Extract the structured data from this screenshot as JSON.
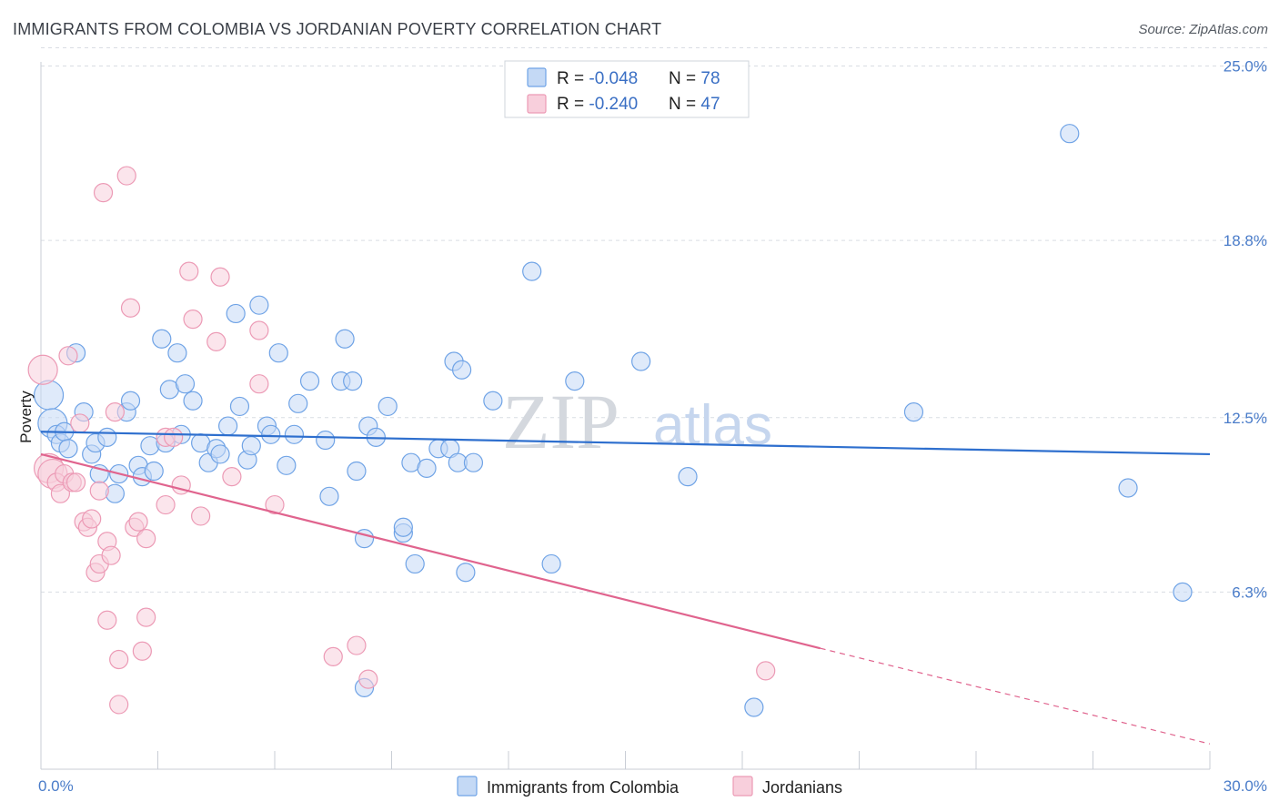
{
  "header": {
    "title": "IMMIGRANTS FROM COLOMBIA VS JORDANIAN POVERTY CORRELATION CHART",
    "source": "Source: ZipAtlas.com"
  },
  "colors": {
    "blue": "#6fa3e6",
    "blue_fill": "#c4d9f5",
    "blue_line": "#2e6fce",
    "pink": "#ec9ab5",
    "pink_fill": "#f8cfdc",
    "pink_line": "#e0648e",
    "grid": "#d9dde3",
    "axis_text": "#4a7cc9"
  },
  "legend_top": {
    "rows": [
      {
        "r_label": "R = ",
        "r_value": "-0.048",
        "n_label": "N = ",
        "n_value": "78"
      },
      {
        "r_label": "R = ",
        "r_value": "-0.240",
        "n_label": "N = ",
        "n_value": "47"
      }
    ]
  },
  "legend_bottom": {
    "items": [
      "Immigrants from Colombia",
      "Jordanians"
    ]
  },
  "watermark": {
    "zip": "ZIP",
    "atlas": "atlas"
  },
  "chart_data": {
    "type": "scatter",
    "title": "IMMIGRANTS FROM COLOMBIA VS JORDANIAN POVERTY CORRELATION CHART",
    "xlabel": "",
    "ylabel": "Poverty",
    "xlim": [
      0,
      30
    ],
    "ylim": [
      0,
      26.5
    ],
    "x_tick_labels": [
      "0.0%",
      "30.0%"
    ],
    "y_ticks": [
      6.3,
      12.5,
      18.8,
      25.0
    ],
    "y_tick_labels": [
      "6.3%",
      "12.5%",
      "18.8%",
      "25.0%"
    ],
    "grid": true,
    "legend_placement": "top-center",
    "series": [
      {
        "name": "Immigrants from Colombia",
        "r": -0.048,
        "n": 78,
        "trend": {
          "x": [
            0,
            30
          ],
          "y": [
            12.0,
            11.2
          ]
        },
        "points": [
          [
            0.2,
            13.3
          ],
          [
            0.3,
            12.3
          ],
          [
            0.4,
            11.9
          ],
          [
            0.5,
            11.6
          ],
          [
            0.6,
            12.0
          ],
          [
            0.7,
            11.4
          ],
          [
            0.9,
            14.8
          ],
          [
            1.1,
            12.7
          ],
          [
            1.3,
            11.2
          ],
          [
            1.4,
            11.6
          ],
          [
            1.5,
            10.5
          ],
          [
            1.7,
            11.8
          ],
          [
            1.9,
            9.8
          ],
          [
            2.0,
            10.5
          ],
          [
            2.2,
            12.7
          ],
          [
            2.3,
            13.1
          ],
          [
            2.5,
            10.8
          ],
          [
            2.6,
            10.4
          ],
          [
            2.8,
            11.5
          ],
          [
            2.9,
            10.6
          ],
          [
            3.1,
            15.3
          ],
          [
            3.2,
            11.6
          ],
          [
            3.3,
            13.5
          ],
          [
            3.5,
            14.8
          ],
          [
            3.6,
            11.9
          ],
          [
            3.7,
            13.7
          ],
          [
            3.9,
            13.1
          ],
          [
            4.1,
            11.6
          ],
          [
            4.3,
            10.9
          ],
          [
            4.5,
            11.4
          ],
          [
            4.6,
            11.2
          ],
          [
            4.8,
            12.2
          ],
          [
            5.0,
            16.2
          ],
          [
            5.1,
            12.9
          ],
          [
            5.3,
            11.0
          ],
          [
            5.4,
            11.5
          ],
          [
            5.6,
            16.5
          ],
          [
            5.8,
            12.2
          ],
          [
            5.9,
            11.9
          ],
          [
            6.1,
            14.8
          ],
          [
            6.3,
            10.8
          ],
          [
            6.5,
            11.9
          ],
          [
            6.6,
            13.0
          ],
          [
            6.9,
            13.8
          ],
          [
            7.3,
            11.7
          ],
          [
            7.4,
            9.7
          ],
          [
            7.7,
            13.8
          ],
          [
            7.8,
            15.3
          ],
          [
            8.0,
            13.8
          ],
          [
            8.1,
            10.6
          ],
          [
            8.3,
            8.2
          ],
          [
            8.4,
            12.2
          ],
          [
            8.6,
            11.8
          ],
          [
            8.9,
            12.9
          ],
          [
            9.3,
            8.4
          ],
          [
            9.5,
            10.9
          ],
          [
            9.6,
            7.3
          ],
          [
            9.9,
            10.7
          ],
          [
            10.2,
            11.4
          ],
          [
            10.5,
            11.4
          ],
          [
            10.6,
            14.5
          ],
          [
            10.7,
            10.9
          ],
          [
            10.8,
            14.2
          ],
          [
            10.9,
            7.0
          ],
          [
            11.1,
            10.9
          ],
          [
            11.6,
            13.1
          ],
          [
            8.3,
            2.9
          ],
          [
            12.6,
            17.7
          ],
          [
            13.1,
            7.3
          ],
          [
            13.7,
            13.8
          ],
          [
            15.4,
            14.5
          ],
          [
            16.6,
            10.4
          ],
          [
            18.3,
            2.2
          ],
          [
            22.4,
            12.7
          ],
          [
            26.4,
            22.6
          ],
          [
            27.9,
            10.0
          ],
          [
            29.3,
            6.3
          ],
          [
            9.3,
            8.6
          ]
        ]
      },
      {
        "name": "Jordanians",
        "r": -0.24,
        "n": 47,
        "trend": {
          "x": [
            0,
            20
          ],
          "y": [
            11.2,
            4.3
          ]
        },
        "trend_dashed": {
          "x": [
            20,
            30
          ],
          "y": [
            4.3,
            0.9
          ]
        },
        "points": [
          [
            0.05,
            14.2
          ],
          [
            0.2,
            10.7
          ],
          [
            0.3,
            10.5
          ],
          [
            0.4,
            10.2
          ],
          [
            0.5,
            9.8
          ],
          [
            0.6,
            10.5
          ],
          [
            0.7,
            14.7
          ],
          [
            0.8,
            10.2
          ],
          [
            0.9,
            10.2
          ],
          [
            1.0,
            12.3
          ],
          [
            1.1,
            8.8
          ],
          [
            1.2,
            8.6
          ],
          [
            1.3,
            8.9
          ],
          [
            1.4,
            7.0
          ],
          [
            1.5,
            7.3
          ],
          [
            1.5,
            9.9
          ],
          [
            1.6,
            20.5
          ],
          [
            1.7,
            5.3
          ],
          [
            1.7,
            8.1
          ],
          [
            1.8,
            7.6
          ],
          [
            1.9,
            12.7
          ],
          [
            2.0,
            3.9
          ],
          [
            2.0,
            2.3
          ],
          [
            2.2,
            21.1
          ],
          [
            2.3,
            16.4
          ],
          [
            2.4,
            8.6
          ],
          [
            2.5,
            8.8
          ],
          [
            2.6,
            4.2
          ],
          [
            2.7,
            8.2
          ],
          [
            2.7,
            5.4
          ],
          [
            3.2,
            11.8
          ],
          [
            3.2,
            9.4
          ],
          [
            3.4,
            11.8
          ],
          [
            3.6,
            10.1
          ],
          [
            3.8,
            17.7
          ],
          [
            3.9,
            16.0
          ],
          [
            4.1,
            9.0
          ],
          [
            4.5,
            15.2
          ],
          [
            4.6,
            17.5
          ],
          [
            4.9,
            10.4
          ],
          [
            5.6,
            15.6
          ],
          [
            5.6,
            13.7
          ],
          [
            6.0,
            9.4
          ],
          [
            7.5,
            4.0
          ],
          [
            8.1,
            4.4
          ],
          [
            8.4,
            3.2
          ],
          [
            18.6,
            3.5
          ]
        ]
      }
    ]
  }
}
